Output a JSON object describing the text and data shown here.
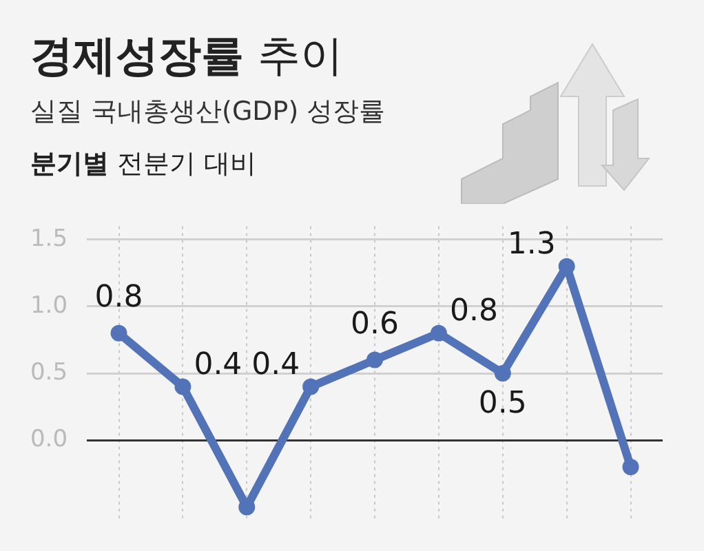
{
  "chart_data": {
    "type": "line",
    "title": "경제성장률 추이",
    "subtitle": "실질 국내총생산(GDP) 성장률",
    "annotations": [
      "분기별 전분기 대비"
    ],
    "categories": [
      null,
      null,
      null,
      null,
      null,
      null,
      null,
      null,
      null
    ],
    "series": [
      {
        "color": "#5273b8",
        "values": [
          0.8,
          0.4,
          -0.5,
          0.4,
          0.6,
          0.8,
          0.5,
          1.3,
          -0.2
        ],
        "value_labels": [
          "0.8",
          "0.4",
          null,
          "0.4",
          "0.6",
          "0.8",
          "0.5",
          "1.3",
          null
        ]
      }
    ],
    "ylim": [
      -0.6,
      1.6
    ],
    "yticks": [
      {
        "value": 0,
        "label": "0.0"
      },
      0.5,
      {
        "value": 1,
        "label": "1.0"
      },
      1.5
    ],
    "grid": true,
    "legend": false,
    "marker": "circle",
    "line_style": "solid"
  }
}
